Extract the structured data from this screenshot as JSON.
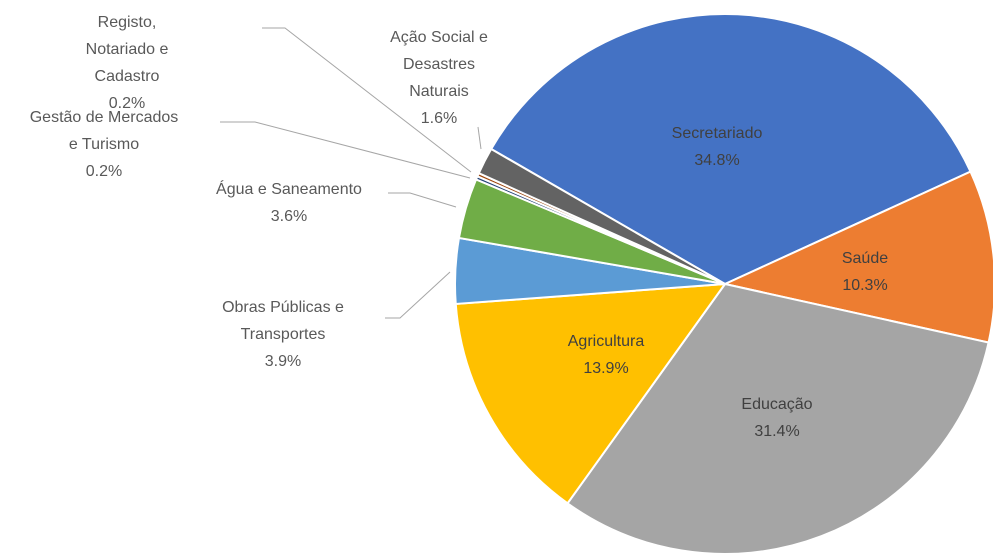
{
  "chart_data": {
    "type": "pie",
    "categories": [
      "Secretariado",
      "Saúde",
      "Educação",
      "Agricultura",
      "Obras Públicas e Transportes",
      "Água e Saneamento",
      "Gestão de Mercados e Turismo",
      "Registo, Notariado e Cadastro",
      "Ação Social e Desastres Naturais"
    ],
    "values": [
      34.8,
      10.3,
      31.4,
      13.9,
      3.9,
      3.6,
      0.2,
      0.2,
      1.6
    ],
    "value_labels": [
      "34.8%",
      "10.3%",
      "31.4%",
      "13.9%",
      "3.9%",
      "3.6%",
      "0.2%",
      "0.2%",
      "1.6%"
    ],
    "colors": [
      "#4472C4",
      "#ED7D31",
      "#A5A5A5",
      "#FFC000",
      "#5B9BD5",
      "#70AD47",
      "#264478",
      "#9E480E",
      "#636363"
    ]
  }
}
